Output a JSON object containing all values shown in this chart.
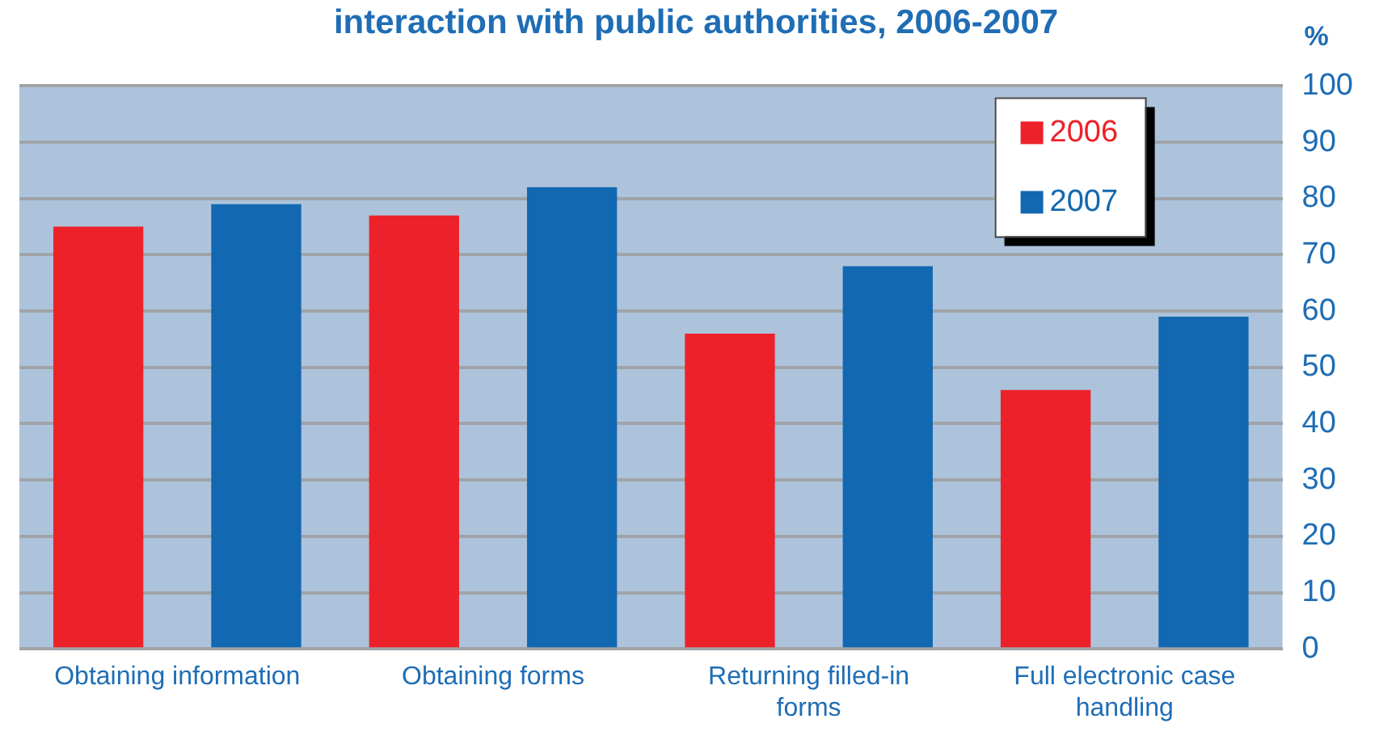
{
  "chart_data": {
    "type": "bar",
    "title": "interaction with public authorities, 2006-2007",
    "ylabel": "%",
    "categories": [
      "Obtaining information",
      "Obtaining forms",
      "Returning filled-in forms",
      "Full electronic case handling"
    ],
    "series": [
      {
        "name": "2006",
        "color": "#ed2129",
        "values": [
          75,
          77,
          56,
          46
        ]
      },
      {
        "name": "2007",
        "color": "#1268b1",
        "values": [
          79,
          82,
          68,
          59
        ]
      }
    ],
    "ylim": [
      0,
      100
    ],
    "yticks": [
      0,
      10,
      20,
      30,
      40,
      50,
      60,
      70,
      80,
      90,
      100
    ],
    "grid": "y",
    "legend": "top right"
  }
}
